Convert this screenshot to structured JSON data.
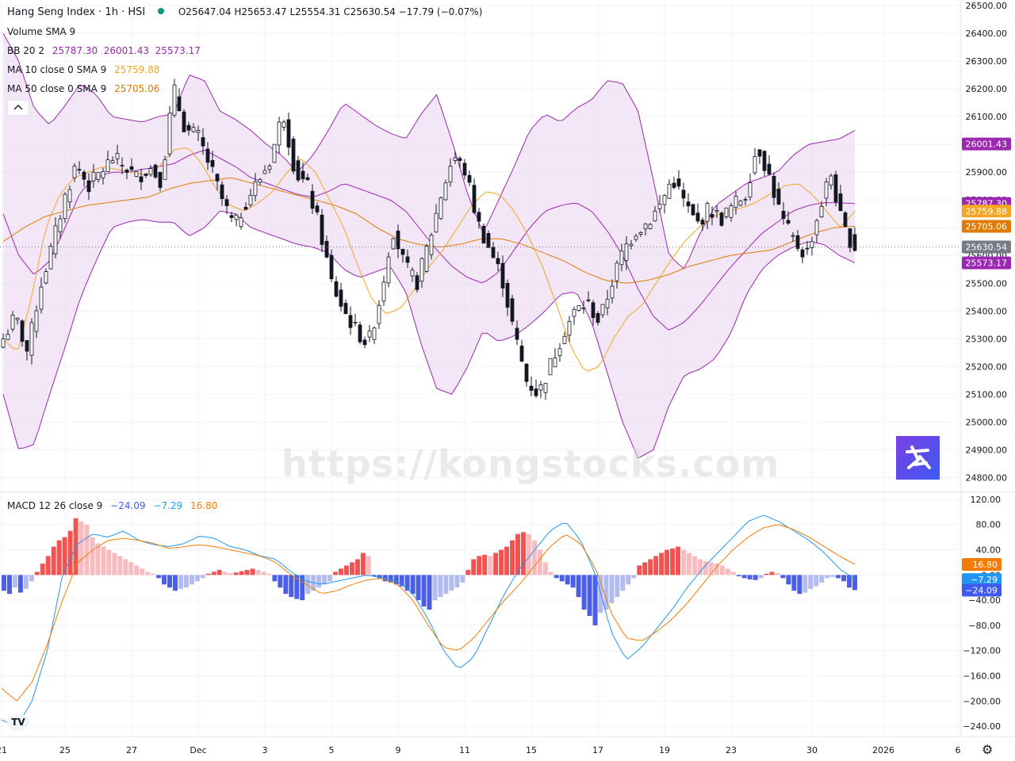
{
  "header": {
    "symbol": "Hang Seng Index · 1h · HSI",
    "ohlc": "O25647.04 H25653.47 L25554.31 C25630.54 −17.79 (−0.07%)",
    "volume": "Volume SMA 9",
    "bb_label": "BB 20 2",
    "bb_values": "25787.30  26001.43  25573.17",
    "ma10_label": "MA 10 close 0 SMA 9",
    "ma10_value": "25759.88",
    "ma50_label": "MA 50 close 0 SMA 9",
    "ma50_value": "25705.06",
    "macd_label": "MACD 12 26 close 9",
    "macd_v1": "−24.09",
    "macd_v2": "−7.29",
    "macd_v3": "16.80"
  },
  "watermark": "https://kongstocks.com",
  "colors": {
    "up": "#ffffff",
    "down": "#131722",
    "bb": "#9c27b0",
    "bb_fill": "#e9d5f2",
    "ma10": "#f5a623",
    "ma50": "#e07b00",
    "macd_line": "#2196f3",
    "signal": "#f57c00",
    "hist_up_strong": "#f05350",
    "hist_up_weak": "#f8bbbf",
    "hist_dn_strong": "#4b5ee5",
    "hist_dn_weak": "#b3bbf0"
  },
  "chart_data": [
    {
      "type": "candlestick",
      "title": "Hang Seng Index · 1h · HSI",
      "ylim": [
        24750,
        26520
      ],
      "y_ticks": [
        24800,
        24900,
        25000,
        25100,
        25200,
        25300,
        25400,
        25500,
        25600,
        25700,
        25800,
        25900,
        26000,
        26100,
        26200,
        26300,
        26400,
        26500
      ],
      "x_tick_labels": [
        "21",
        "25",
        "27",
        "Dec",
        "3",
        "5",
        "9",
        "11",
        "15",
        "17",
        "19",
        "23",
        "30",
        "2026",
        "6"
      ],
      "price_tags": [
        {
          "value": 26001.43,
          "label": "26001.43",
          "color": "#9c27b0"
        },
        {
          "value": 25787.3,
          "label": "25787.30",
          "color": "#9c27b0"
        },
        {
          "value": 25759.88,
          "label": "25759.88",
          "color": "#f5a623"
        },
        {
          "value": 25705.06,
          "label": "25705.06",
          "color": "#e07b00"
        },
        {
          "value": 25630.54,
          "label": "25630.54",
          "color": "#787b86"
        },
        {
          "value": 25573.17,
          "label": "25573.17",
          "color": "#9c27b0"
        }
      ],
      "last_close": 25630.54,
      "close_anchors": [
        25300,
        25380,
        25250,
        25480,
        25630,
        25800,
        25930,
        25850,
        25900,
        25950,
        25920,
        25880,
        25920,
        25870,
        26200,
        26050,
        26030,
        25920,
        25800,
        25700,
        25800,
        25870,
        25950,
        26120,
        25900,
        25850,
        25700,
        25500,
        25400,
        25330,
        25280,
        25450,
        25700,
        25560,
        25500,
        25650,
        25820,
        25960,
        25900,
        25720,
        25620,
        25520,
        25320,
        25150,
        25100,
        25210,
        25320,
        25400,
        25430,
        25360,
        25500,
        25620,
        25690,
        25720,
        25780,
        25880,
        25790,
        25710,
        25770,
        25730,
        25780,
        25820,
        26000,
        25880,
        25730,
        25650,
        25600,
        25750,
        25900,
        25700,
        25630
      ],
      "bb_upper_anchors": [
        26400,
        26300,
        26130,
        26070,
        26140,
        26220,
        26180,
        26100,
        26090,
        26080,
        26100,
        26110,
        26250,
        26230,
        26120,
        26090,
        26050,
        26000,
        25960,
        25900,
        25960,
        26050,
        26150,
        26110,
        26070,
        26040,
        26020,
        26110,
        26180,
        26010,
        25820,
        25680,
        25800,
        25920,
        26050,
        26110,
        26080,
        26130,
        26160,
        26230,
        26220,
        26120,
        25870,
        25600,
        25550,
        25680,
        25780,
        25820,
        25860,
        25880,
        25900,
        25960,
        26000,
        26010,
        26020,
        26050
      ],
      "bb_mid_anchors": [
        25750,
        25600,
        25530,
        25580,
        25700,
        25830,
        25880,
        25900,
        25900,
        25910,
        25920,
        25930,
        25960,
        25980,
        25950,
        25920,
        25880,
        25860,
        25840,
        25820,
        25810,
        25830,
        25860,
        25840,
        25820,
        25800,
        25760,
        25690,
        25620,
        25560,
        25520,
        25500,
        25540,
        25620,
        25700,
        25760,
        25780,
        25790,
        25760,
        25690,
        25600,
        25480,
        25380,
        25330,
        25360,
        25420,
        25490,
        25560,
        25620,
        25680,
        25720,
        25760,
        25780,
        25790,
        25790,
        25787
      ],
      "bb_lower_anchors": [
        25100,
        24900,
        24920,
        25100,
        25270,
        25450,
        25580,
        25700,
        25720,
        25730,
        25720,
        25720,
        25670,
        25700,
        25760,
        25750,
        25700,
        25680,
        25660,
        25640,
        25630,
        25610,
        25550,
        25520,
        25540,
        25560,
        25470,
        25280,
        25120,
        25100,
        25200,
        25330,
        25290,
        25310,
        25350,
        25400,
        25460,
        25470,
        25360,
        25180,
        25000,
        24870,
        24900,
        25060,
        25170,
        25190,
        25230,
        25320,
        25460,
        25550,
        25600,
        25630,
        25650,
        25640,
        25600,
        25573
      ],
      "ma10_anchors": [
        25300,
        25250,
        25450,
        25700,
        25820,
        25880,
        25900,
        25920,
        25910,
        25900,
        25890,
        25920,
        25980,
        25990,
        25930,
        25840,
        25780,
        25760,
        25790,
        25830,
        25900,
        25950,
        25900,
        25800,
        25700,
        25560,
        25440,
        25390,
        25410,
        25480,
        25560,
        25620,
        25700,
        25780,
        25830,
        25820,
        25760,
        25670,
        25560,
        25420,
        25270,
        25180,
        25200,
        25300,
        25380,
        25420,
        25500,
        25580,
        25650,
        25700,
        25740,
        25760,
        25770,
        25790,
        25820,
        25850,
        25860,
        25820,
        25760,
        25700,
        25760
      ],
      "ma50_anchors": [
        25650,
        25700,
        25740,
        25760,
        25780,
        25790,
        25800,
        25810,
        25840,
        25860,
        25870,
        25880,
        25860,
        25840,
        25820,
        25800,
        25780,
        25750,
        25700,
        25660,
        25640,
        25630,
        25640,
        25660,
        25660,
        25640,
        25610,
        25580,
        25540,
        25510,
        25500,
        25510,
        25530,
        25560,
        25580,
        25600,
        25610,
        25620,
        25650,
        25680,
        25700,
        25705
      ]
    },
    {
      "type": "macd",
      "title": "MACD 12 26 close 9",
      "ylim": [
        -255,
        130
      ],
      "y_ticks": [
        120,
        80,
        40,
        0,
        -40,
        -80,
        -120,
        -160,
        -200,
        -240
      ],
      "tags": [
        {
          "value": 16.8,
          "label": "16.80",
          "color": "#f57c00"
        },
        {
          "value": -7.29,
          "label": "−7.29",
          "color": "#2196f3"
        },
        {
          "value": -24.09,
          "label": "−24.09",
          "color": "#3d5af1"
        }
      ],
      "histogram": [
        -25,
        -30,
        -20,
        -28,
        -22,
        -10,
        5,
        18,
        30,
        45,
        55,
        60,
        70,
        90,
        85,
        80,
        60,
        50,
        45,
        40,
        35,
        30,
        25,
        20,
        15,
        10,
        5,
        2,
        -5,
        -15,
        -20,
        -25,
        -22,
        -20,
        -15,
        -10,
        -5,
        2,
        5,
        8,
        5,
        3,
        4,
        6,
        8,
        10,
        8,
        5,
        2,
        -10,
        -20,
        -30,
        -35,
        -38,
        -40,
        -30,
        -25,
        -20,
        -15,
        -10,
        5,
        10,
        15,
        20,
        25,
        35,
        30,
        -2,
        -5,
        -10,
        -12,
        -15,
        -18,
        -25,
        -30,
        -40,
        -50,
        -55,
        -40,
        -35,
        -30,
        -25,
        -20,
        -12,
        8,
        25,
        30,
        32,
        30,
        35,
        40,
        45,
        55,
        65,
        68,
        65,
        55,
        40,
        20,
        5,
        -5,
        -10,
        -15,
        -20,
        -35,
        -55,
        -65,
        -80,
        -60,
        -55,
        -45,
        -35,
        -25,
        -15,
        -5,
        15,
        20,
        25,
        30,
        35,
        40,
        42,
        45,
        40,
        35,
        30,
        25,
        22,
        20,
        18,
        15,
        10,
        5,
        -2,
        -5,
        -7,
        -8,
        -5,
        2,
        5,
        3,
        -5,
        -15,
        -25,
        -30,
        -28,
        -22,
        -18,
        -12,
        -5,
        -3,
        -5,
        -10,
        -20,
        -24
      ],
      "macd_anchors": [
        -230,
        -240,
        -200,
        -120,
        0,
        50,
        65,
        60,
        70,
        55,
        48,
        45,
        50,
        62,
        58,
        45,
        40,
        30,
        25,
        5,
        -10,
        -15,
        -10,
        -5,
        0,
        -5,
        -10,
        -30,
        -70,
        -120,
        -150,
        -130,
        -80,
        -30,
        10,
        40,
        70,
        85,
        55,
        0,
        -90,
        -135,
        -115,
        -85,
        -55,
        -20,
        10,
        35,
        60,
        85,
        95,
        85,
        70,
        55,
        35,
        10,
        -7
      ],
      "signal_anchors": [
        -180,
        -200,
        -170,
        -110,
        -40,
        20,
        40,
        55,
        58,
        55,
        50,
        42,
        45,
        48,
        45,
        40,
        35,
        30,
        20,
        0,
        -15,
        -30,
        -25,
        -15,
        -8,
        -5,
        -15,
        -40,
        -80,
        -115,
        -120,
        -100,
        -70,
        -40,
        -15,
        15,
        45,
        65,
        50,
        10,
        -60,
        -100,
        -105,
        -90,
        -70,
        -45,
        -15,
        15,
        40,
        60,
        75,
        80,
        72,
        60,
        45,
        30,
        17
      ]
    }
  ]
}
